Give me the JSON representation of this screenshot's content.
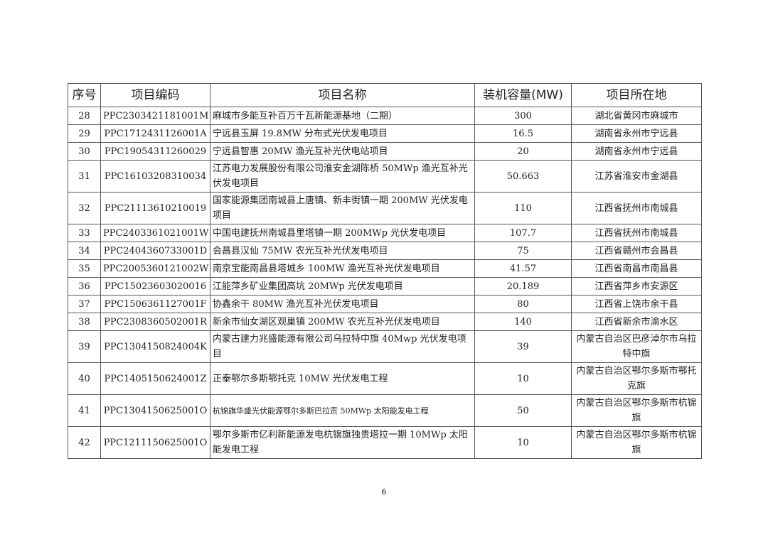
{
  "table": {
    "headers": [
      "序号",
      "项目编码",
      "项目名称",
      "装机容量(MW)",
      "项目所在地"
    ],
    "rows": [
      {
        "no": "28",
        "code": "PPC2303421181001M",
        "name": "麻城市多能互补百万千瓦新能源基地（二期）",
        "capacity": "300",
        "location": "湖北省黄冈市麻城市"
      },
      {
        "no": "29",
        "code": "PPC1712431126001A",
        "name": "宁远县玉屏 19.8MW 分布式光伏发电项目",
        "capacity": "16.5",
        "location": "湖南省永州市宁远县"
      },
      {
        "no": "30",
        "code": "PPC19054311260029",
        "name": "宁远县智惠 20MW 渔光互补光伏电站项目",
        "capacity": "20",
        "location": "湖南省永州市宁远县"
      },
      {
        "no": "31",
        "code": "PPC16103208310034",
        "name": "江苏电力发展股份有限公司淮安金湖陈桥 50MWp 渔光互补光伏发电项目",
        "capacity": "50.663",
        "location": "江苏省淮安市金湖县"
      },
      {
        "no": "32",
        "code": "PPC21113610210019",
        "name": "国家能源集团南城县上唐镇、新丰街镇一期 200MW 光伏发电项目",
        "capacity": "110",
        "location": "江西省抚州市南城县"
      },
      {
        "no": "33",
        "code": "PPC2403361021001W",
        "name": "中国电建抚州南城县里塔镇一期 200MWp 光伏发电项目",
        "capacity": "107.7",
        "location": "江西省抚州市南城县"
      },
      {
        "no": "34",
        "code": "PPC2404360733001D",
        "name": "会昌县汉仙 75MW 农光互补光伏发电项目",
        "capacity": "75",
        "location": "江西省赣州市会昌县"
      },
      {
        "no": "35",
        "code": "PPC2005360121002W",
        "name": "南京宝能南昌县塔城乡 100MW 渔光互补光伏发电项目",
        "capacity": "41.57",
        "location": "江西省南昌市南昌县"
      },
      {
        "no": "36",
        "code": "PPC15023603020016",
        "name": "江能萍乡矿业集团高坑 20MWp 光伏发电项目",
        "capacity": "20.189",
        "location": "江西省萍乡市安源区"
      },
      {
        "no": "37",
        "code": "PPC1506361127001F",
        "name": "协鑫余干 80MW 渔光互补光伏发电项目",
        "capacity": "80",
        "location": "江西省上饶市余干县"
      },
      {
        "no": "38",
        "code": "PPC2308360502001R",
        "name": "新余市仙女湖区观巢镇 200MW 农光互补光伏发电项目",
        "capacity": "140",
        "location": "江西省新余市渝水区"
      },
      {
        "no": "39",
        "code": "PPC1304150824004K",
        "name": "内蒙古建力兆盛能源有限公司乌拉特中旗 40Mwp 光伏发电项目",
        "capacity": "39",
        "location": "内蒙古自治区巴彦淖尔市乌拉特中旗"
      },
      {
        "no": "40",
        "code": "PPC1405150624001Z",
        "name": "正泰鄂尔多斯鄂托克 10MW 光伏发电工程",
        "capacity": "10",
        "location": "内蒙古自治区鄂尔多斯市鄂托克旗"
      },
      {
        "no": "41",
        "code": "PPC1304150625001O",
        "name": "杭锦旗华盛光伏能源鄂尔多斯巴拉贡 50MWp 太阳能发电工程",
        "capacity": "50",
        "location": "内蒙古自治区鄂尔多斯市杭锦旗"
      },
      {
        "no": "42",
        "code": "PPC1211150625001O",
        "name": "鄂尔多斯市亿利新能源发电杭锦旗独贵塔拉一期 10MWp 太阳能发电工程",
        "capacity": "10",
        "location": "内蒙古自治区鄂尔多斯市杭锦旗"
      }
    ]
  },
  "page_number": "6"
}
